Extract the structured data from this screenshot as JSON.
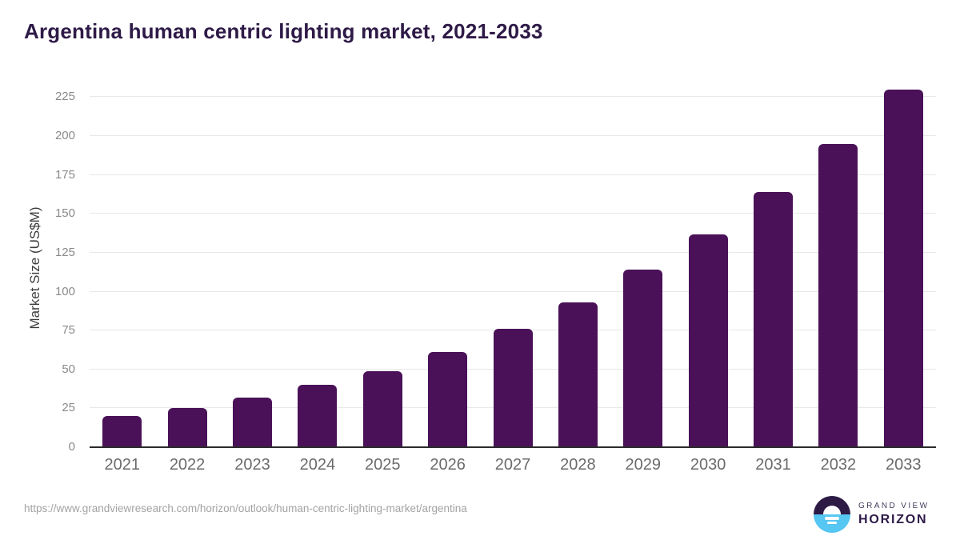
{
  "chart_data": {
    "type": "bar",
    "title": "Argentina human centric lighting market, 2021-2033",
    "categories": [
      "2021",
      "2022",
      "2023",
      "2024",
      "2025",
      "2026",
      "2027",
      "2028",
      "2029",
      "2030",
      "2031",
      "2032",
      "2033"
    ],
    "values": [
      20,
      25,
      32,
      40,
      49,
      61,
      76,
      93,
      114,
      137,
      164,
      195,
      230
    ],
    "xlabel": "",
    "ylabel": "Market Size (US$M)",
    "ylim": [
      0,
      236
    ],
    "yticks": [
      0,
      25,
      50,
      75,
      100,
      125,
      150,
      175,
      200,
      225
    ],
    "grid": true,
    "legend": "none",
    "bar_color": "#4a1158"
  },
  "colors": {
    "title_text": "#2e1a47",
    "bar": "#4a1158",
    "gridline": "#e8e8e8",
    "axis_line": "#2b2b2b",
    "y_tick_label": "#8a8a8a",
    "x_tick_label": "#6b6b6b",
    "y_axis_title": "#3d3d3d",
    "source_url_text": "#a3a3a3",
    "logo_dark_purple": "#2d1b45",
    "logo_sky_blue": "#56c6f2"
  },
  "footer": {
    "source_url": "https://www.grandviewresearch.com/horizon/outlook/human-centric-lighting-market/argentina",
    "logo_line1": "GRAND VIEW",
    "logo_line2": "HORIZON"
  }
}
